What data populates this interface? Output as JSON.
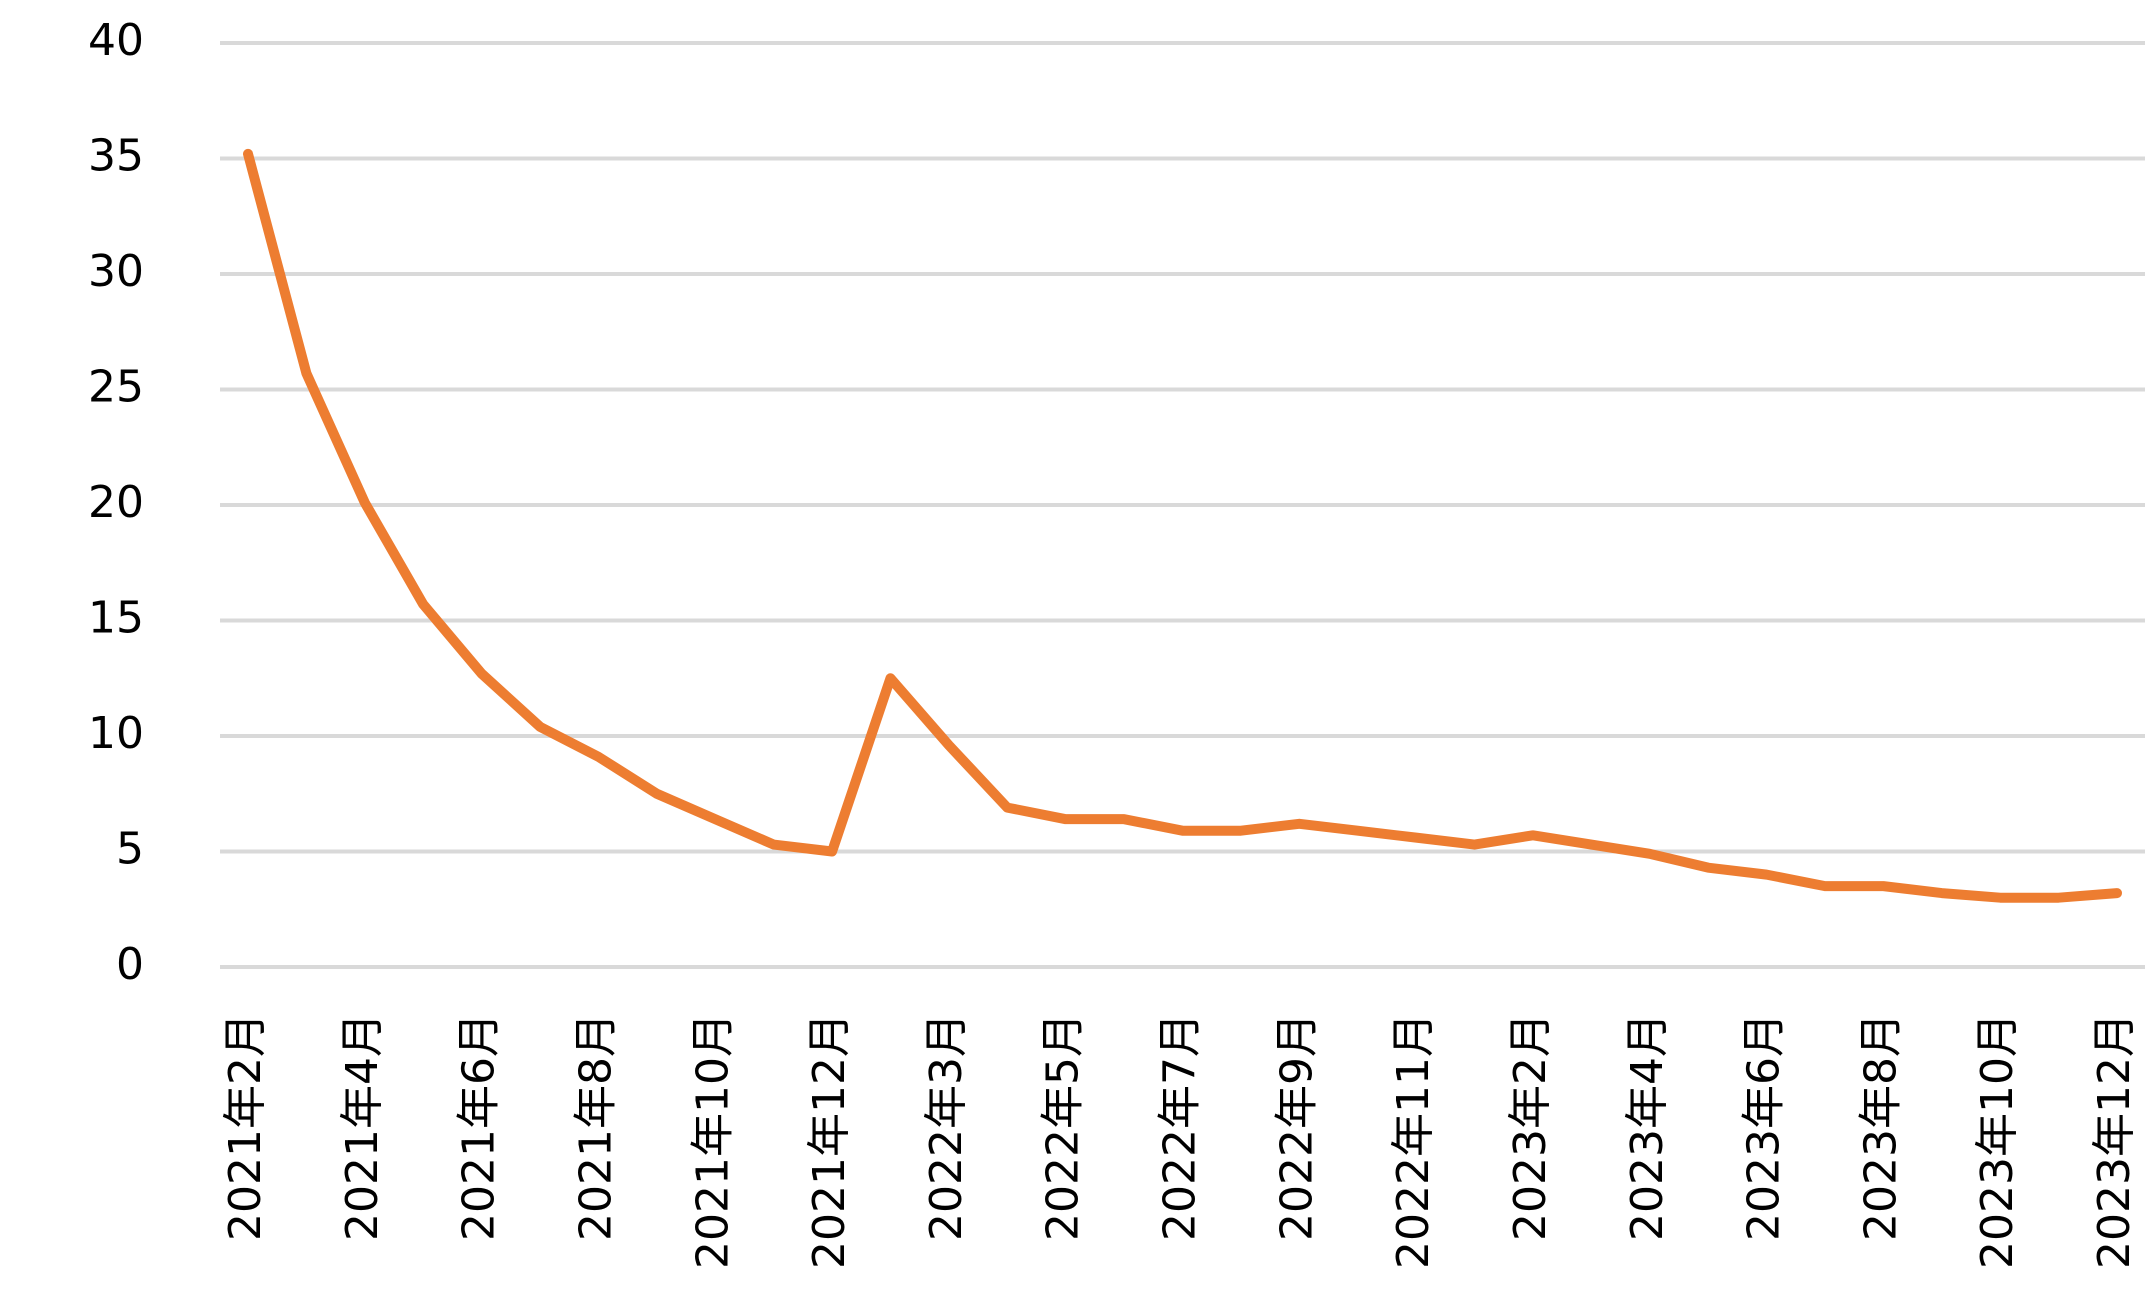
{
  "chart_data": {
    "type": "line",
    "categories": [
      "2021年2月",
      null,
      "2021年4月",
      null,
      "2021年6月",
      null,
      "2021年8月",
      null,
      "2021年10月",
      null,
      "2021年12月",
      null,
      "2022年3月",
      null,
      "2022年5月",
      null,
      "2022年7月",
      null,
      "2022年9月",
      null,
      "2022年11月",
      null,
      "2023年2月",
      null,
      "2023年4月",
      null,
      "2023年6月",
      null,
      "2023年8月",
      null,
      "2023年10月",
      null,
      "2023年12月"
    ],
    "series": [
      {
        "color": "#ED7D31",
        "values": [
          35.2,
          25.7,
          20.1,
          15.7,
          12.7,
          10.4,
          9.1,
          7.5,
          6.4,
          5.3,
          5.0,
          12.5,
          9.6,
          6.9,
          6.4,
          6.4,
          5.9,
          5.9,
          6.2,
          5.9,
          5.6,
          5.3,
          5.7,
          5.3,
          4.9,
          4.3,
          4.0,
          3.5,
          3.5,
          3.2,
          3.0,
          3.0,
          3.2
        ]
      }
    ],
    "ylim": [
      0,
      40
    ],
    "yticks": [
      0,
      5,
      10,
      15,
      20,
      25,
      30,
      35,
      40
    ],
    "grid": true
  }
}
